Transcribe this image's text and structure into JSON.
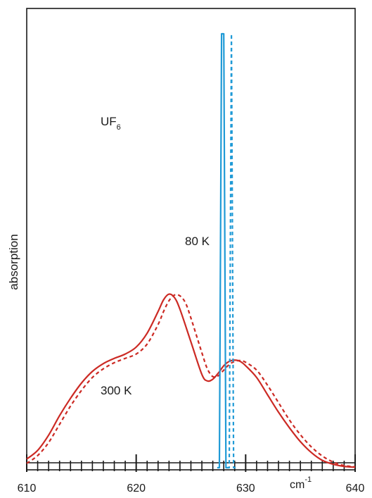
{
  "chart_data": {
    "type": "line",
    "title": "",
    "xlabel": "",
    "ylabel": "absorption",
    "x_unit": {
      "base": "cm",
      "exponent": "-1"
    },
    "xlim": [
      610,
      640
    ],
    "ylim": [
      0,
      1
    ],
    "x_major_ticks": [
      610,
      620,
      630,
      640
    ],
    "x_tick_labels": [
      "610",
      "620",
      "630",
      "640"
    ],
    "x_minor_step": 1,
    "grid": false,
    "legend": "none",
    "annotations": {
      "molecule": {
        "base": "UF",
        "subscript": "6"
      },
      "low_temp": "80 K",
      "high_temp": "300 K"
    },
    "series": [
      {
        "style": "solid",
        "color": "#cc2a24",
        "x": [
          610,
          611,
          612,
          613,
          614,
          615,
          616,
          617,
          618,
          619,
          620,
          621,
          622,
          622.5,
          623,
          623.5,
          624,
          625,
          626,
          626.5,
          627,
          627.5,
          628,
          628.5,
          629,
          629.5,
          630,
          631,
          632,
          633,
          634,
          635,
          636,
          637,
          638,
          639,
          640
        ],
        "y": [
          0.02,
          0.04,
          0.075,
          0.12,
          0.16,
          0.195,
          0.222,
          0.24,
          0.252,
          0.262,
          0.278,
          0.31,
          0.36,
          0.387,
          0.4,
          0.392,
          0.365,
          0.29,
          0.215,
          0.2,
          0.204,
          0.218,
          0.235,
          0.245,
          0.248,
          0.245,
          0.235,
          0.208,
          0.168,
          0.128,
          0.092,
          0.06,
          0.035,
          0.017,
          0.008,
          0.003,
          0.001
        ]
      },
      {
        "style": "dashed",
        "color": "#cc2a24",
        "x": [
          610,
          611,
          612,
          613,
          614,
          615,
          616,
          617,
          618,
          619,
          620,
          621,
          622,
          622.5,
          623,
          623.5,
          624,
          624.5,
          625,
          626,
          626.5,
          627,
          627.5,
          628,
          628.5,
          629,
          629.5,
          630,
          631,
          632,
          633,
          634,
          635,
          636,
          637,
          638,
          639,
          640
        ],
        "y": [
          0.01,
          0.028,
          0.058,
          0.1,
          0.142,
          0.178,
          0.208,
          0.228,
          0.242,
          0.252,
          0.262,
          0.285,
          0.33,
          0.36,
          0.385,
          0.398,
          0.396,
          0.38,
          0.345,
          0.265,
          0.228,
          0.21,
          0.212,
          0.225,
          0.238,
          0.245,
          0.247,
          0.243,
          0.225,
          0.19,
          0.15,
          0.11,
          0.076,
          0.048,
          0.027,
          0.013,
          0.005,
          0.002
        ]
      },
      {
        "style": "solid",
        "color": "#1f9ad6",
        "x": [
          627.4,
          627.6,
          627.8,
          628.0,
          628.2,
          628.4
        ],
        "y": [
          0.0,
          0.0,
          1.0,
          1.0,
          0.0,
          0.0
        ]
      },
      {
        "style": "dashed",
        "color": "#1f9ad6",
        "x": [
          628.3,
          628.5,
          628.7,
          628.9,
          629.1
        ],
        "y": [
          0.0,
          0.0,
          1.0,
          0.0,
          0.0
        ]
      }
    ]
  }
}
